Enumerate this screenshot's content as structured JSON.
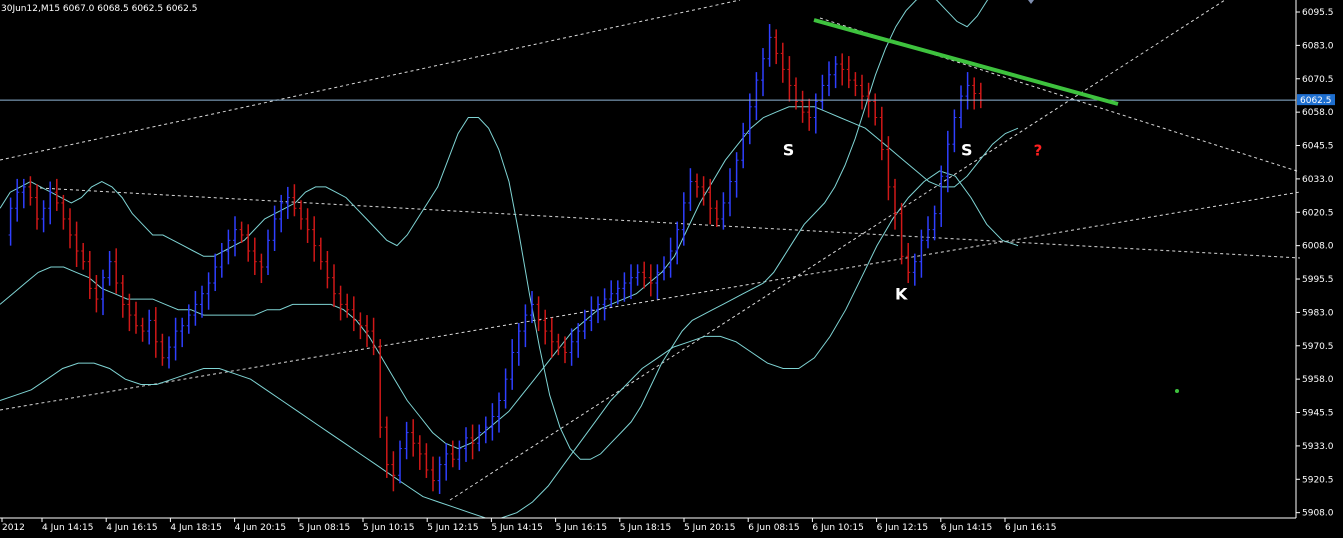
{
  "header": {
    "text": "30Jun12,M15  6067.0 6068.5 6062.5 6062.5"
  },
  "colors": {
    "background": "#000000",
    "bull": "#2f3fff",
    "bear": "#d01818",
    "band": "#7fd4d4",
    "trend": "#ffffff",
    "resistance": "#3ec23e",
    "price_line": "#8fb6d6",
    "price_box": "#1e6fd0",
    "text": "#ffffff",
    "question": "#ff2020"
  },
  "chart_data": {
    "type": "candlestick",
    "timeframe": "M15",
    "ylim": [
      5906,
      6100
    ],
    "y_ticks": [
      6095.5,
      6083.0,
      6070.5,
      6058.0,
      6045.5,
      6033.0,
      6020.5,
      6008.0,
      5995.5,
      5983.0,
      5970.5,
      5958.0,
      5945.5,
      5933.0,
      5920.5,
      5908.0
    ],
    "y_tick_labels": [
      "6095.5",
      "6083.0",
      "6070.5",
      "6058.0",
      "6045.5",
      "6033.0",
      "6020.5",
      "6008.0",
      "5995.5",
      "5983.0",
      "5970.5",
      "5958.0",
      "5945.5",
      "5933.0",
      "5920.5",
      "5908.0"
    ],
    "x_tick_labels": [
      "2012",
      "4 Jun 14:15",
      "4 Jun 16:15",
      "4 Jun 18:15",
      "4 Jun 20:15",
      "5 Jun 08:15",
      "5 Jun 10:15",
      "5 Jun 12:15",
      "5 Jun 14:15",
      "5 Jun 16:15",
      "5 Jun 18:15",
      "5 Jun 20:15",
      "6 Jun 08:15",
      "6 Jun 10:15",
      "6 Jun 12:15",
      "6 Jun 14:15",
      "6 Jun 16:15"
    ],
    "current_price": 6062.5,
    "current_price_label": "6062.5",
    "close_series": [
      6012,
      6022,
      6028,
      6030,
      6026,
      6018,
      6022,
      6028,
      6024,
      6018,
      6012,
      6006,
      6002,
      5992,
      5988,
      5996,
      6002,
      5994,
      5986,
      5982,
      5978,
      5976,
      5980,
      5972,
      5966,
      5970,
      5976,
      5978,
      5982,
      5986,
      5990,
      5994,
      6000,
      6006,
      6010,
      6014,
      6012,
      6006,
      6002,
      6000,
      6010,
      6018,
      6024,
      6026,
      6022,
      6018,
      6014,
      6008,
      6002,
      5996,
      5990,
      5986,
      5984,
      5980,
      5978,
      5976,
      5970,
      5940,
      5926,
      5922,
      5932,
      5938,
      5934,
      5930,
      5924,
      5920,
      5926,
      5930,
      5928,
      5932,
      5936,
      5934,
      5938,
      5940,
      5944,
      5950,
      5958,
      5968,
      5976,
      5982,
      5986,
      5980,
      5976,
      5972,
      5970,
      5968,
      5972,
      5976,
      5980,
      5984,
      5986,
      5988,
      5990,
      5992,
      5994,
      5996,
      5998,
      5996,
      5994,
      5998,
      6000,
      6006,
      6014,
      6024,
      6032,
      6030,
      6028,
      6022,
      6018,
      6024,
      6032,
      6040,
      6050,
      6060,
      6070,
      6078,
      6086,
      6080,
      6074,
      6068,
      6062,
      6058,
      6056,
      6062,
      6068,
      6072,
      6076,
      6074,
      6070,
      6068,
      6064,
      6062,
      6056,
      6044,
      6030,
      6020,
      6004,
      5998,
      6002,
      6010,
      6014,
      6020,
      6034,
      6046,
      6056,
      6064,
      6068,
      6065,
      6062.5
    ],
    "upper_band": [
      6022,
      6028,
      6030,
      6032,
      6030,
      6028,
      6026,
      6024,
      6026,
      6030,
      6032,
      6030,
      6026,
      6020,
      6016,
      6012,
      6012,
      6010,
      6008,
      6006,
      6004,
      6004,
      6006,
      6008,
      6010,
      6014,
      6018,
      6020,
      6022,
      6024,
      6028,
      6030,
      6030,
      6028,
      6026,
      6022,
      6018,
      6014,
      6010,
      6008,
      6012,
      6018,
      6024,
      6030,
      6040,
      6050,
      6056,
      6056,
      6052,
      6044,
      6032,
      6012,
      5990,
      5970,
      5952,
      5940,
      5932,
      5928,
      5928,
      5930,
      5934,
      5938,
      5942,
      5948,
      5956,
      5964,
      5970,
      5976,
      5980,
      5982,
      5984,
      5986,
      5988,
      5990,
      5992,
      5994,
      5998,
      6004,
      6010,
      6016,
      6020,
      6024,
      6030,
      6038,
      6048,
      6060,
      6072,
      6082,
      6090,
      6096,
      6100,
      6102,
      6100,
      6096,
      6092,
      6090,
      6094,
      6100,
      6104,
      6106,
      6106
    ],
    "middle_band": [
      5986,
      5990,
      5994,
      5998,
      6000,
      6000,
      5998,
      5996,
      5992,
      5990,
      5988,
      5988,
      5988,
      5986,
      5984,
      5984,
      5982,
      5982,
      5982,
      5982,
      5982,
      5984,
      5984,
      5986,
      5986,
      5986,
      5986,
      5984,
      5980,
      5974,
      5966,
      5958,
      5950,
      5944,
      5938,
      5934,
      5932,
      5934,
      5938,
      5942,
      5946,
      5952,
      5958,
      5964,
      5970,
      5976,
      5980,
      5984,
      5986,
      5988,
      5990,
      5994,
      5998,
      6004,
      6014,
      6024,
      6032,
      6040,
      6046,
      6052,
      6056,
      6058,
      6060,
      6060,
      6060,
      6058,
      6056,
      6054,
      6052,
      6048,
      6044,
      6040,
      6036,
      6032,
      6030,
      6030,
      6034,
      6040,
      6046,
      6050,
      6052
    ],
    "lower_band": [
      5950,
      5952,
      5954,
      5958,
      5962,
      5964,
      5964,
      5962,
      5958,
      5956,
      5956,
      5958,
      5960,
      5962,
      5962,
      5960,
      5958,
      5954,
      5950,
      5946,
      5942,
      5938,
      5934,
      5930,
      5926,
      5922,
      5918,
      5914,
      5912,
      5910,
      5908,
      5906,
      5906,
      5908,
      5912,
      5918,
      5926,
      5934,
      5942,
      5950,
      5956,
      5962,
      5966,
      5970,
      5972,
      5974,
      5974,
      5972,
      5968,
      5964,
      5962,
      5962,
      5966,
      5974,
      5984,
      5996,
      6008,
      6018,
      6026,
      6032,
      6036,
      6034,
      6026,
      6016,
      6010,
      6008
    ]
  },
  "annotations": [
    {
      "text": "S",
      "x_index": 118,
      "value": 6044
    },
    {
      "text": "K",
      "x_index": 135,
      "value": 5990
    },
    {
      "text": "S",
      "x_index": 145,
      "value": 6044
    },
    {
      "text": "?",
      "x_index": 156,
      "value": 6044
    }
  ]
}
